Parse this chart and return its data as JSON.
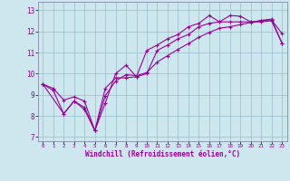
{
  "title": "",
  "xlabel": "Windchill (Refroidissement éolien,°C)",
  "ylabel": "",
  "xlim": [
    -0.5,
    23.5
  ],
  "ylim": [
    6.8,
    13.4
  ],
  "xtick_vals": [
    0,
    1,
    2,
    3,
    4,
    5,
    6,
    7,
    8,
    9,
    10,
    11,
    12,
    13,
    14,
    15,
    16,
    17,
    18,
    19,
    20,
    21,
    22,
    23
  ],
  "xtick_labels": [
    "0",
    "1",
    "2",
    "3",
    "4",
    "5",
    "6",
    "7",
    "8",
    "9",
    "10",
    "11",
    "12",
    "13",
    "14",
    "15",
    "16",
    "17",
    "18",
    "19",
    "20",
    "21",
    "22",
    "23"
  ],
  "ytick_vals": [
    7,
    8,
    9,
    10,
    11,
    12,
    13
  ],
  "ytick_labels": [
    "7",
    "8",
    "9",
    "10",
    "11",
    "12",
    "13"
  ],
  "bg_color": "#cce8ee",
  "line_color": "#990099",
  "grid_color": "#99bbcc",
  "spine_color": "#8888aa",
  "line1_x": [
    0,
    1,
    2,
    3,
    4,
    5,
    6,
    7,
    8,
    9,
    10,
    11,
    12,
    13,
    14,
    15,
    16,
    17,
    18,
    19,
    20,
    21,
    22,
    23
  ],
  "line1_y": [
    9.5,
    9.2,
    8.1,
    8.7,
    8.4,
    7.3,
    8.6,
    10.0,
    10.4,
    9.85,
    11.1,
    11.35,
    11.65,
    11.85,
    12.22,
    12.38,
    12.75,
    12.45,
    12.75,
    12.72,
    12.45,
    12.5,
    12.55,
    11.9
  ],
  "line2_x": [
    0,
    2,
    3,
    4,
    5,
    6,
    7,
    8,
    9,
    10,
    11,
    12,
    13,
    14,
    15,
    16,
    17,
    18,
    19,
    20,
    21,
    22,
    23
  ],
  "line2_y": [
    9.5,
    8.1,
    8.7,
    8.3,
    7.3,
    9.3,
    9.8,
    9.8,
    9.85,
    10.0,
    11.1,
    11.35,
    11.65,
    11.85,
    12.22,
    12.38,
    12.45,
    12.45,
    12.45,
    12.45,
    12.45,
    12.5,
    11.45
  ],
  "line3_x": [
    0,
    1,
    2,
    3,
    4,
    5,
    6,
    7,
    8,
    9,
    10,
    11,
    12,
    13,
    14,
    15,
    16,
    17,
    18,
    19,
    20,
    21,
    22,
    23
  ],
  "line3_y": [
    9.5,
    9.3,
    8.75,
    8.9,
    8.7,
    7.3,
    8.95,
    9.65,
    9.95,
    9.9,
    10.05,
    10.55,
    10.85,
    11.15,
    11.42,
    11.72,
    11.95,
    12.15,
    12.22,
    12.32,
    12.42,
    12.52,
    12.58,
    11.45
  ]
}
